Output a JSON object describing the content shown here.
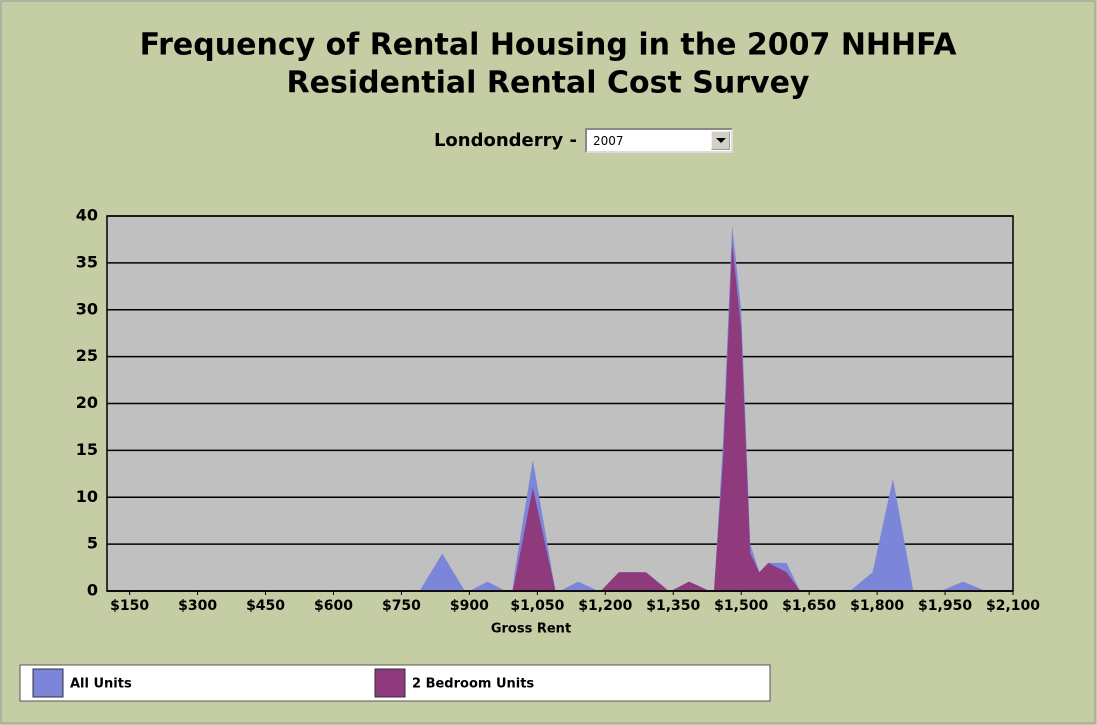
{
  "dropdown": {
    "label": "Londonderry -",
    "value": "2007"
  },
  "chart_data": {
    "type": "area",
    "title_lines": [
      "Frequency of Rental Housing in the 2007 NHHFA",
      "Residential Rental Cost Survey"
    ],
    "x_label": "Gross Rent",
    "x": [
      100,
      790,
      840,
      890,
      900,
      940,
      980,
      995,
      1000,
      1040,
      1090,
      1100,
      1140,
      1185,
      1190,
      1230,
      1290,
      1340,
      1345,
      1385,
      1430,
      1440,
      1460,
      1480,
      1500,
      1520,
      1540,
      1560,
      1600,
      1630,
      1740,
      1790,
      1835,
      1880,
      1940,
      1990,
      2040,
      2100
    ],
    "series": [
      {
        "name": "All Units",
        "color": "#7b86d8",
        "values": [
          0,
          0,
          4,
          0,
          0,
          1,
          0,
          0,
          2,
          14,
          0,
          0,
          1,
          0,
          0,
          2,
          2,
          0,
          0,
          1,
          0,
          0,
          16,
          39,
          30,
          5,
          2,
          3,
          3,
          0,
          0,
          2,
          12,
          0,
          0,
          1,
          0,
          0
        ]
      },
      {
        "name": "2 Bedroom Units",
        "color": "#8e3a7d",
        "values": [
          0,
          0,
          0,
          0,
          0,
          0,
          0,
          0,
          1,
          11,
          0,
          0,
          0,
          0,
          0,
          2,
          2,
          0,
          0,
          1,
          0,
          0,
          14,
          37,
          28,
          4,
          2,
          3,
          2,
          0,
          0,
          0,
          0,
          0,
          0,
          0,
          0,
          0
        ]
      }
    ],
    "xlim": [
      100,
      2100
    ],
    "xticks": [
      {
        "value": 150,
        "label": "$150"
      },
      {
        "value": 300,
        "label": "$300"
      },
      {
        "value": 450,
        "label": "$450"
      },
      {
        "value": 600,
        "label": "$600"
      },
      {
        "value": 750,
        "label": "$750"
      },
      {
        "value": 900,
        "label": "$900"
      },
      {
        "value": 1050,
        "label": "$1,050"
      },
      {
        "value": 1200,
        "label": "$1,200"
      },
      {
        "value": 1350,
        "label": "$1,350"
      },
      {
        "value": 1500,
        "label": "$1,500"
      },
      {
        "value": 1650,
        "label": "$1,650"
      },
      {
        "value": 1800,
        "label": "$1,800"
      },
      {
        "value": 1950,
        "label": "$1,950"
      },
      {
        "value": 2100,
        "label": "$2,100"
      }
    ],
    "ylim": [
      0,
      40
    ],
    "yticks": [
      0,
      5,
      10,
      15,
      20,
      25,
      30,
      35,
      40
    ],
    "grid": true,
    "legend": "bottom"
  }
}
